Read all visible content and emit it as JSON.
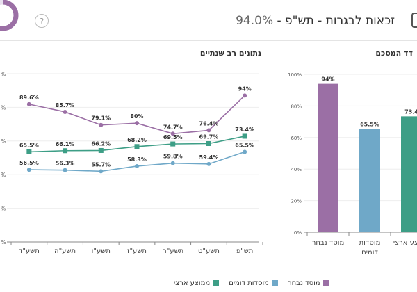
{
  "header": {
    "title": "זכאות לבגרות - תש\"פ -",
    "value": "94.0%"
  },
  "colors": {
    "musad": "#9b6fa5",
    "domim": "#6fa8c8",
    "artzi": "#3d9e86",
    "donut_bg": "#e8e0ee"
  },
  "left_panel": {
    "title": "נתונים רב שנתיים"
  },
  "right_panel": {
    "title": "דד המסכם"
  },
  "legend": [
    {
      "label": "מוסד נבחר",
      "color_key": "musad"
    },
    {
      "label": "מוסדות דומים",
      "color_key": "domim"
    },
    {
      "label": "ממוצע ארצי",
      "color_key": "artzi"
    }
  ],
  "chart_data": [
    {
      "type": "line",
      "title": "נתונים רב שנתיים",
      "categories": [
        "תשע\"ד",
        "תשע\"ה",
        "תשע\"ו",
        "תשע\"ז",
        "תשע\"ח",
        "תשע\"ט",
        "תש\"פ"
      ],
      "ylim": [
        0,
        100
      ],
      "yticks_visible": [
        "%",
        "%",
        "%",
        "%",
        "%",
        "%"
      ],
      "series": [
        {
          "name": "מוסד נבחר",
          "color_key": "musad",
          "values": [
            89.6,
            85.7,
            79.1,
            80,
            74.7,
            76.4,
            94
          ],
          "labels": [
            "89.6%",
            "85.7%",
            "79.1%",
            "80%",
            "74.7%",
            "76.4%",
            "94%"
          ]
        },
        {
          "name": "ממוצע ארצי",
          "color_key": "artzi",
          "values": [
            65.5,
            66.1,
            66.2,
            68.2,
            69.5,
            69.7,
            73.4
          ],
          "labels": [
            "65.5%",
            "66.1%",
            "66.2%",
            "68.2%",
            "69.5%",
            "69.7%",
            "73.4%"
          ]
        },
        {
          "name": "מוסדות דומים",
          "color_key": "domim",
          "values": [
            56.5,
            56.3,
            55.7,
            58.3,
            59.8,
            59.4,
            65.5
          ],
          "labels": [
            "56.5%",
            "56.3%",
            "55.7%",
            "58.3%",
            "59.8%",
            "59.4%",
            "65.5%"
          ]
        }
      ]
    },
    {
      "type": "bar",
      "categories": [
        "מוסד נבחר",
        "מוסדות\nדומים",
        "ממוצע ארצי"
      ],
      "values": [
        94,
        65.5,
        73.4
      ],
      "labels": [
        "94%",
        "65.5%",
        "73.4"
      ],
      "color_keys": [
        "musad",
        "domim",
        "artzi"
      ],
      "ylim": [
        0,
        100
      ],
      "yticks": [
        "0%",
        "20%",
        "40%",
        "60%",
        "80%",
        "100%"
      ]
    }
  ]
}
